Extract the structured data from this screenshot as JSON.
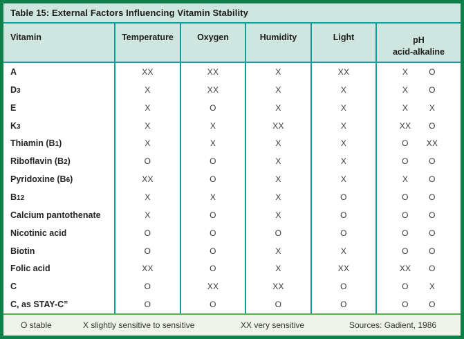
{
  "title": "Table 15: External Factors Influencing Vitamin Stability",
  "columns": [
    "Vitamin",
    "Temperature",
    "Oxygen",
    "Humidity",
    "Light"
  ],
  "ph_header": {
    "line1": "pH",
    "line2": "acid-alkaline"
  },
  "rows": [
    {
      "vitamin": [
        {
          "t": "A"
        }
      ],
      "temperature": "XX",
      "oxygen": "XX",
      "humidity": "X",
      "light": "XX",
      "ph_acid": "X",
      "ph_alkaline": "O"
    },
    {
      "vitamin": [
        {
          "t": "D"
        },
        {
          "t": "3",
          "sub": true
        }
      ],
      "temperature": "X",
      "oxygen": "XX",
      "humidity": "X",
      "light": "X",
      "ph_acid": "X",
      "ph_alkaline": "O"
    },
    {
      "vitamin": [
        {
          "t": "E"
        }
      ],
      "temperature": "X",
      "oxygen": "O",
      "humidity": "X",
      "light": "X",
      "ph_acid": "X",
      "ph_alkaline": "X"
    },
    {
      "vitamin": [
        {
          "t": "K"
        },
        {
          "t": "3",
          "sub": true
        }
      ],
      "temperature": "X",
      "oxygen": "X",
      "humidity": "XX",
      "light": "X",
      "ph_acid": "XX",
      "ph_alkaline": "O"
    },
    {
      "vitamin": [
        {
          "t": "Thiamin (B"
        },
        {
          "t": "1",
          "sub": true
        },
        {
          "t": ")"
        }
      ],
      "temperature": "X",
      "oxygen": "X",
      "humidity": "X",
      "light": "X",
      "ph_acid": "O",
      "ph_alkaline": "XX"
    },
    {
      "vitamin": [
        {
          "t": "Riboflavin (B"
        },
        {
          "t": "2",
          "sub": true
        },
        {
          "t": ")"
        }
      ],
      "temperature": "O",
      "oxygen": "O",
      "humidity": "X",
      "light": "X",
      "ph_acid": "O",
      "ph_alkaline": "O"
    },
    {
      "vitamin": [
        {
          "t": "Pyridoxine (B"
        },
        {
          "t": "6",
          "sub": true
        },
        {
          "t": ")"
        }
      ],
      "temperature": "XX",
      "oxygen": "O",
      "humidity": "X",
      "light": "X",
      "ph_acid": "X",
      "ph_alkaline": "O"
    },
    {
      "vitamin": [
        {
          "t": "B"
        },
        {
          "t": "12",
          "sub": true
        }
      ],
      "temperature": "X",
      "oxygen": "X",
      "humidity": "X",
      "light": "O",
      "ph_acid": "O",
      "ph_alkaline": "O"
    },
    {
      "vitamin": [
        {
          "t": "Calcium pantothenate"
        }
      ],
      "temperature": "X",
      "oxygen": "O",
      "humidity": "X",
      "light": "O",
      "ph_acid": "O",
      "ph_alkaline": "O"
    },
    {
      "vitamin": [
        {
          "t": "Nicotinic acid"
        }
      ],
      "temperature": "O",
      "oxygen": "O",
      "humidity": "O",
      "light": "O",
      "ph_acid": "O",
      "ph_alkaline": "O"
    },
    {
      "vitamin": [
        {
          "t": "Biotin"
        }
      ],
      "temperature": "O",
      "oxygen": "O",
      "humidity": "X",
      "light": "X",
      "ph_acid": "O",
      "ph_alkaline": "O"
    },
    {
      "vitamin": [
        {
          "t": "Folic acid"
        }
      ],
      "temperature": "XX",
      "oxygen": "O",
      "humidity": "X",
      "light": "XX",
      "ph_acid": "XX",
      "ph_alkaline": "O"
    },
    {
      "vitamin": [
        {
          "t": "C"
        }
      ],
      "temperature": "O",
      "oxygen": "XX",
      "humidity": "XX",
      "light": "O",
      "ph_acid": "O",
      "ph_alkaline": "X"
    },
    {
      "vitamin": [
        {
          "t": "C, as STAY-C”"
        }
      ],
      "temperature": "O",
      "oxygen": "O",
      "humidity": "O",
      "light": "O",
      "ph_acid": "O",
      "ph_alkaline": "O"
    }
  ],
  "legend": {
    "stable": "O stable",
    "slightly_sensitive": "X slightly sensitive to sensitive",
    "very_sensitive": "XX very sensitive",
    "sources": "Sources: Gadient, 1986"
  },
  "colors": {
    "outer_border_green": "#10804a",
    "header_background_mint": "#cfe5e0",
    "grid_teal": "#129e98",
    "footer_background": "#eef4ea",
    "footer_separator_green": "#54b14e",
    "text_dark": "#1c1c1a"
  }
}
